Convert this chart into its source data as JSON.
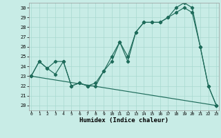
{
  "xlabel": "Humidex (Indice chaleur)",
  "bg_color": "#c8ece6",
  "grid_color": "#a8d8d0",
  "line_color": "#1e6b5a",
  "line1_x": [
    0,
    1,
    2,
    3,
    4,
    5,
    6,
    7,
    8,
    9,
    10,
    11,
    12,
    13,
    14,
    15,
    16,
    17,
    18,
    19,
    20,
    21,
    22,
    23
  ],
  "line1_y": [
    23,
    24.5,
    23.8,
    23.2,
    24.5,
    22.0,
    22.3,
    22.0,
    22.0,
    23.5,
    24.5,
    26.5,
    24.5,
    27.5,
    28.5,
    28.5,
    28.5,
    29.0,
    29.5,
    30.0,
    29.5,
    26.0,
    22.0,
    20.0
  ],
  "line2_x": [
    0,
    1,
    2,
    3,
    4,
    5,
    6,
    7,
    8,
    9,
    10,
    11,
    12,
    13,
    14,
    15,
    16,
    17,
    18,
    19,
    20,
    21,
    22,
    23
  ],
  "line2_y": [
    23,
    24.5,
    23.8,
    24.5,
    24.5,
    22.0,
    22.3,
    22.0,
    22.3,
    23.5,
    25.0,
    26.5,
    25.0,
    27.5,
    28.5,
    28.5,
    28.5,
    29.0,
    30.0,
    30.5,
    30.0,
    26.0,
    22.0,
    20.0
  ],
  "line3_x": [
    0,
    23
  ],
  "line3_y": [
    23,
    20
  ],
  "xlim": [
    0,
    23
  ],
  "ylim": [
    19.5,
    30.5
  ],
  "yticks": [
    20,
    21,
    22,
    23,
    24,
    25,
    26,
    27,
    28,
    29,
    30
  ],
  "xticks": [
    0,
    1,
    2,
    3,
    4,
    5,
    6,
    7,
    8,
    9,
    10,
    11,
    12,
    13,
    14,
    15,
    16,
    17,
    18,
    19,
    20,
    21,
    22,
    23
  ]
}
